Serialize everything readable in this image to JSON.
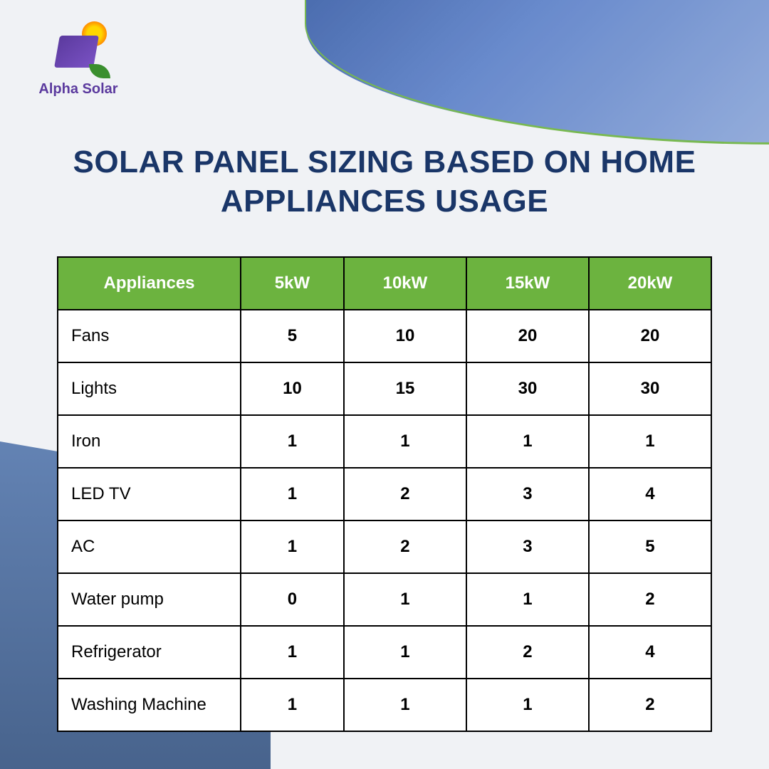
{
  "brand": {
    "name": "Alpha Solar",
    "colors": {
      "logo_text": "#5b3a9e",
      "accent": "#6cb33f",
      "title": "#1a3668"
    }
  },
  "title": "SOLAR PANEL SIZING BASED ON HOME APPLIANCES USAGE",
  "table": {
    "type": "table",
    "header_bg": "#6cb33f",
    "header_text_color": "#ffffff",
    "border_color": "#000000",
    "cell_bg": "#ffffff",
    "header_fontsize": 24,
    "cell_fontsize": 24,
    "columns": [
      "Appliances",
      "5kW",
      "10kW",
      "15kW",
      "20kW"
    ],
    "column_widths_pct": [
      28,
      18,
      18,
      18,
      18
    ],
    "value_alignment": "center",
    "appliance_alignment": "left",
    "value_fontweight": 700,
    "rows": [
      {
        "appliance": "Fans",
        "values": [
          "5",
          "10",
          "20",
          "20"
        ]
      },
      {
        "appliance": "Lights",
        "values": [
          "10",
          "15",
          "30",
          "30"
        ]
      },
      {
        "appliance": "Iron",
        "values": [
          "1",
          "1",
          "1",
          "1"
        ]
      },
      {
        "appliance": "LED TV",
        "values": [
          "1",
          "2",
          "3",
          "4"
        ]
      },
      {
        "appliance": "AC",
        "values": [
          "1",
          "2",
          "3",
          "5"
        ]
      },
      {
        "appliance": "Water pump",
        "values": [
          "0",
          "1",
          "1",
          "2"
        ]
      },
      {
        "appliance": "Refrigerator",
        "values": [
          "1",
          "1",
          "2",
          "4"
        ]
      },
      {
        "appliance": "Washing Machine",
        "values": [
          "1",
          "1",
          "1",
          "2"
        ]
      }
    ]
  },
  "background": {
    "page_bg": "#f0f2f5",
    "top_curve_gradient": [
      "#3a5fa8",
      "#5a7fc8",
      "#8aa5d8"
    ],
    "bottom_image_tint": [
      "#4a6fa8",
      "#2a4a7a"
    ]
  }
}
